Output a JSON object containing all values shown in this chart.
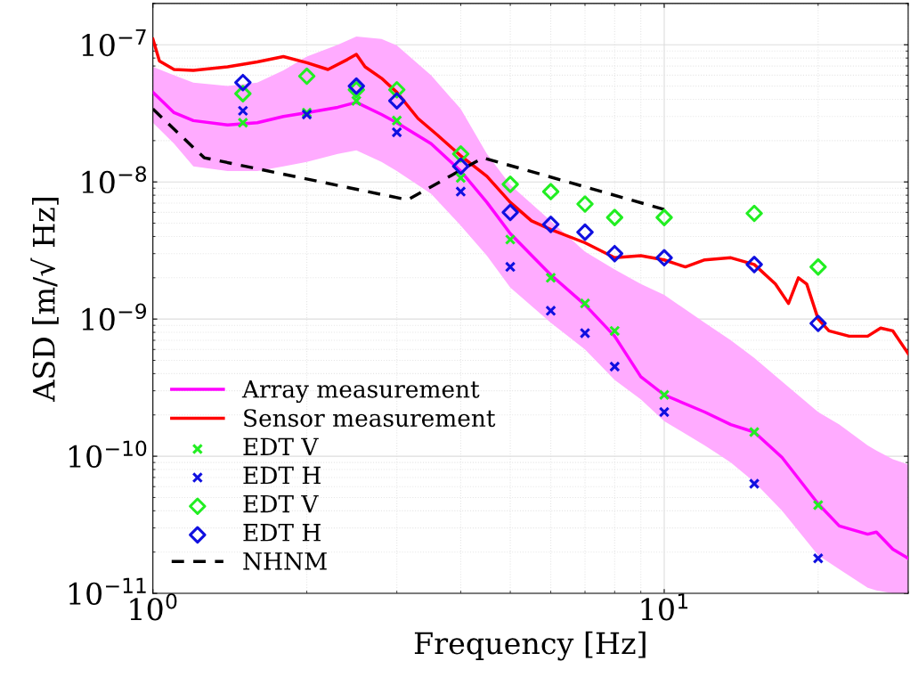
{
  "chart_data": {
    "type": "line",
    "xlabel": "Frequency [Hz]",
    "ylabel": "ASD [m/√ Hz]",
    "log": "xy",
    "grid": true,
    "legend": "bottom left",
    "xlim": [
      1,
      30
    ],
    "xticks": [
      {
        "value": 1,
        "label": "10$^{0}$"
      },
      {
        "value": 10,
        "label": "10$^{1}$"
      }
    ],
    "ylim": [
      1e-11,
      2e-07
    ],
    "yticks": [
      {
        "value": 1e-11,
        "label": "10$^{−11}$"
      },
      {
        "value": 1e-10,
        "label": "10$^{−10}$"
      },
      {
        "value": 1e-09,
        "label": "10$^{−9}$"
      },
      {
        "value": 1e-08,
        "label": "10$^{−8}$"
      },
      {
        "value": 1e-07,
        "label": "10$^{−7}$"
      }
    ],
    "series": [
      {
        "name": "Array measurement",
        "color": "#ff00ff",
        "line_style": "solid",
        "x": [
          1,
          1.1,
          1.2,
          1.4,
          1.6,
          1.8,
          2,
          2.3,
          2.5,
          2.8,
          3,
          3.5,
          4,
          4.5,
          5,
          6,
          7,
          8,
          9,
          10,
          12,
          13.5,
          15,
          17,
          20,
          22,
          25,
          26,
          28,
          30
        ],
        "values": [
          4.5e-08,
          3.2e-08,
          2.8e-08,
          2.6e-08,
          2.7e-08,
          3e-08,
          3.2e-08,
          3.5e-08,
          3.8e-08,
          3.1e-08,
          2.7e-08,
          1.9e-08,
          1.2e-08,
          7.1e-09,
          4.2e-09,
          2.1e-09,
          1.27e-09,
          7.5e-10,
          3.8e-10,
          2.8e-10,
          2.1e-10,
          1.7e-10,
          1.5e-10,
          9.8e-11,
          4.5e-11,
          3.1e-11,
          2.7e-11,
          2.8e-11,
          2.1e-11,
          1.8e-11
        ],
        "upper": [
          6.9e-08,
          6e-08,
          5.3e-08,
          5e-08,
          5.3e-08,
          6.5e-08,
          8.2e-08,
          1e-07,
          1.15e-07,
          1.1e-07,
          9.9e-08,
          6e-08,
          3.4e-08,
          1.6e-08,
          9.5e-09,
          5.2e-09,
          3.1e-09,
          2.3e-09,
          1.8e-09,
          1.5e-09,
          9.4e-10,
          7e-10,
          5.2e-10,
          3.5e-10,
          2.1e-10,
          1.7e-10,
          1.2e-10,
          1.1e-10,
          9.5e-11,
          8.7e-11
        ],
        "lower": [
          2.7e-08,
          1.9e-08,
          1.3e-08,
          1.2e-08,
          1.2e-08,
          1.3e-08,
          1.4e-08,
          1.6e-08,
          1.7e-08,
          1.4e-08,
          1.2e-08,
          8.2e-09,
          4.8e-09,
          2.9e-09,
          1.7e-09,
          9.4e-10,
          6e-10,
          3.6e-10,
          2.6e-10,
          1.8e-10,
          1.2e-10,
          9e-11,
          6.5e-11,
          4e-11,
          1.9e-11,
          1.5e-11,
          1.1e-11,
          1.05e-11,
          1e-11,
          1e-11
        ]
      },
      {
        "name": "Sensor measurement",
        "color": "#ff0000",
        "line_style": "solid",
        "x": [
          1,
          1.03,
          1.1,
          1.2,
          1.4,
          1.6,
          1.8,
          2,
          2.2,
          2.4,
          2.5,
          2.6,
          2.8,
          3,
          3.3,
          3.6,
          4,
          4.5,
          5,
          5.5,
          6,
          7,
          8,
          9,
          10,
          11,
          12,
          13.5,
          15,
          16.5,
          17.5,
          18.3,
          19,
          20,
          21,
          23,
          25,
          26.5,
          28,
          30
        ],
        "values": [
          1.1e-07,
          7.6e-08,
          6.6e-08,
          6.5e-08,
          6.9e-08,
          7.5e-08,
          8.2e-08,
          7.4e-08,
          6.6e-08,
          7.8e-08,
          8.5e-08,
          6.9e-08,
          5.7e-08,
          4.5e-08,
          2.9e-08,
          2.2e-08,
          1.55e-08,
          1.1e-08,
          7.1e-09,
          5.2e-09,
          4.5e-09,
          3.6e-09,
          2.8e-09,
          2.9e-09,
          2.7e-09,
          2.4e-09,
          2.7e-09,
          2.8e-09,
          2.5e-09,
          1.8e-09,
          1.3e-09,
          2e-09,
          1.8e-09,
          1e-09,
          8.2e-10,
          7.5e-10,
          7.5e-10,
          8.6e-10,
          8.2e-10,
          5.6e-10
        ]
      },
      {
        "name": "EDT V",
        "type": "scatter",
        "marker": "cross",
        "color": "#22ee22",
        "x": [
          1.5,
          2,
          2.5,
          3,
          4,
          5,
          6,
          7,
          8,
          10,
          15,
          20
        ],
        "values": [
          2.7e-08,
          3.2e-08,
          3.9e-08,
          2.8e-08,
          1.07e-08,
          3.8e-09,
          2e-09,
          1.3e-09,
          8.2e-10,
          2.8e-10,
          1.5e-10,
          4.4e-11
        ]
      },
      {
        "name": "EDT H",
        "type": "scatter",
        "marker": "cross",
        "color": "#1010e0",
        "x": [
          1.5,
          2,
          2.5,
          3,
          4,
          5,
          6,
          7,
          8,
          10,
          15,
          20
        ],
        "values": [
          3.3e-08,
          3.1e-08,
          null,
          2.3e-08,
          8.5e-09,
          2.4e-09,
          1.15e-09,
          7.9e-10,
          4.5e-10,
          2.1e-10,
          6.3e-11,
          1.8e-11
        ]
      },
      {
        "name": "EDT V",
        "type": "scatter",
        "marker": "diamond",
        "color": "#22ee22",
        "x": [
          1.5,
          2,
          2.5,
          3,
          4,
          5,
          6,
          7,
          8,
          10,
          15,
          20
        ],
        "values": [
          4.4e-08,
          5.9e-08,
          4.7e-08,
          4.7e-08,
          1.6e-08,
          9.6e-09,
          8.5e-09,
          6.9e-09,
          5.5e-09,
          5.5e-09,
          5.9e-09,
          2.4e-09
        ]
      },
      {
        "name": "EDT H",
        "type": "scatter",
        "marker": "diamond",
        "color": "#1010e0",
        "x": [
          1.5,
          2,
          2.5,
          3,
          4,
          5,
          6,
          7,
          8,
          10,
          15,
          20
        ],
        "values": [
          5.3e-08,
          null,
          5e-08,
          3.9e-08,
          1.3e-08,
          6e-09,
          4.9e-09,
          4.3e-09,
          3e-09,
          2.8e-09,
          2.5e-09,
          9.3e-10
        ]
      },
      {
        "name": "NHNM",
        "color": "#000000",
        "line_style": "dashed",
        "x": [
          1,
          1.26,
          3.15,
          4.42,
          10
        ],
        "values": [
          3.4e-08,
          1.5e-08,
          7.4e-09,
          1.5e-08,
          6.3e-09
        ]
      }
    ]
  }
}
